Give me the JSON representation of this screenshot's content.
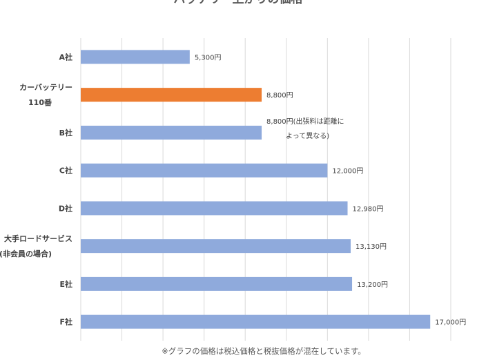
{
  "chart_data": {
    "type": "bar",
    "orientation": "horizontal",
    "title": "バッテリー上がりの価格",
    "categories": [
      [
        "A社"
      ],
      [
        "カーバッテリー",
        "110番"
      ],
      [
        "B社"
      ],
      [
        "C社"
      ],
      [
        "D社"
      ],
      [
        "大手ロードサービス",
        "(非会員の場合)"
      ],
      [
        "E社"
      ],
      [
        "F社"
      ]
    ],
    "values": [
      5300,
      8800,
      8800,
      12000,
      12980,
      13130,
      13200,
      17000
    ],
    "data_labels": [
      [
        "5,300円"
      ],
      [
        "8,800円"
      ],
      [
        "8,800円(出張料は距離に",
        "よって異なる)"
      ],
      [
        "12,000円"
      ],
      [
        "12,980円"
      ],
      [
        "13,130円"
      ],
      [
        "13,200円"
      ],
      [
        "17,000円"
      ]
    ],
    "highlight_index": 1,
    "xlim": [
      0,
      18000
    ],
    "grid_step": 2000,
    "grid": true,
    "legend": "none",
    "colors": {
      "default": "#8faadc",
      "highlight": "#ed7d31",
      "grid": "#d9d9d9"
    },
    "footnote": "※グラフの価格は税込価格と税抜価格が混在しています。"
  }
}
